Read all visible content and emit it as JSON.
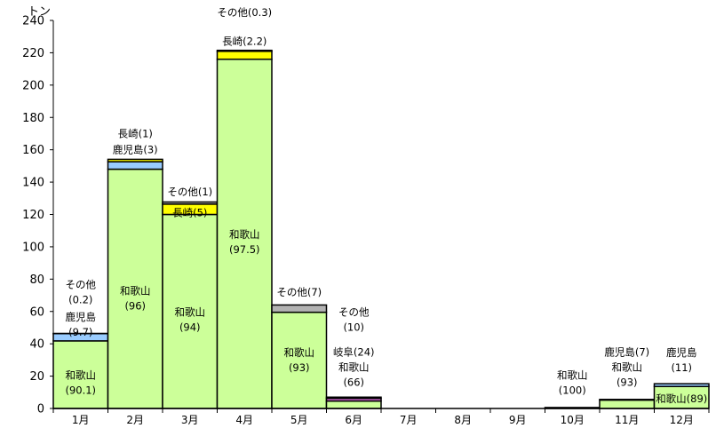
{
  "chart_data": {
    "type": "bar",
    "stacked": true,
    "unit_label": "トン",
    "ylim": [
      0,
      240
    ],
    "yticks": [
      0,
      20,
      40,
      60,
      80,
      100,
      120,
      140,
      160,
      180,
      200,
      220,
      240
    ],
    "categories": [
      "1月",
      "2月",
      "3月",
      "4月",
      "5月",
      "6月",
      "7月",
      "8月",
      "9月",
      "10月",
      "11月",
      "12月"
    ],
    "series": [
      {
        "key": "wakayama",
        "color": "#ccff99",
        "values": [
          41.8,
          148,
          120,
          216,
          59.5,
          4.6,
          0,
          0,
          0,
          0.6,
          5.2,
          13.6
        ]
      },
      {
        "key": "gifu",
        "color": "#cc66cc",
        "values": [
          0,
          0,
          0,
          0,
          0,
          1.7,
          0,
          0,
          0,
          0,
          0,
          0
        ]
      },
      {
        "key": "kagoshima",
        "color": "#99ccff",
        "values": [
          4.5,
          4.6,
          0,
          0,
          0,
          0,
          0,
          0,
          0,
          0,
          0.4,
          1.7
        ]
      },
      {
        "key": "nagasaki",
        "color": "#ffff00",
        "values": [
          0,
          1.5,
          6.4,
          4.9,
          0,
          0,
          0,
          0,
          0,
          0,
          0,
          0
        ]
      },
      {
        "key": "other",
        "color": "#b3b3b3",
        "values": [
          0.1,
          0,
          1.3,
          0.6,
          4.5,
          0.7,
          0,
          0,
          0,
          0,
          0,
          0
        ]
      }
    ],
    "annotations": [
      {
        "month": 0,
        "y": 16,
        "lines": [
          "和歌山",
          "(90.1)"
        ]
      },
      {
        "month": 0,
        "y": 52,
        "lines": [
          "鹿児島",
          "(9.7)"
        ]
      },
      {
        "month": 0,
        "y": 72,
        "lines": [
          "その他",
          "(0.2)"
        ]
      },
      {
        "month": 1,
        "y": 68,
        "lines": [
          "和歌山",
          "(96)"
        ]
      },
      {
        "month": 1,
        "y": 160,
        "lines": [
          "鹿児島(3)"
        ]
      },
      {
        "month": 1,
        "y": 170,
        "lines": [
          "長崎(1)"
        ]
      },
      {
        "month": 2,
        "y": 55,
        "lines": [
          "和歌山",
          "(94)"
        ]
      },
      {
        "month": 2,
        "y": 121,
        "lines": [
          "長崎(5)"
        ]
      },
      {
        "month": 2,
        "y": 134,
        "lines": [
          "その他(1)"
        ]
      },
      {
        "month": 3,
        "y": 103,
        "lines": [
          "和歌山",
          "(97.5)"
        ]
      },
      {
        "month": 3,
        "y": 227,
        "lines": [
          "長崎(2.2)"
        ]
      },
      {
        "month": 3,
        "y": 245,
        "lines": [
          "その他(0.3)"
        ]
      },
      {
        "month": 4,
        "y": 30,
        "lines": [
          "和歌山",
          "(93)"
        ]
      },
      {
        "month": 4,
        "y": 72,
        "lines": [
          "その他(7)"
        ]
      },
      {
        "month": 5,
        "y": 21,
        "lines": [
          "和歌山",
          "(66)"
        ]
      },
      {
        "month": 5,
        "y": 35,
        "lines": [
          "岐阜(24)"
        ]
      },
      {
        "month": 5,
        "y": 55,
        "lines": [
          "その他",
          "(10)"
        ]
      },
      {
        "month": 9,
        "y": 16,
        "lines": [
          "和歌山",
          "(100)"
        ]
      },
      {
        "month": 10,
        "y": 21,
        "lines": [
          "和歌山",
          "(93)"
        ]
      },
      {
        "month": 10,
        "y": 35,
        "lines": [
          "鹿児島(7)"
        ]
      },
      {
        "month": 11,
        "y": 6,
        "lines": [
          "和歌山(89)"
        ]
      },
      {
        "month": 11,
        "y": 30,
        "lines": [
          "鹿児島",
          "(11)"
        ]
      }
    ]
  }
}
